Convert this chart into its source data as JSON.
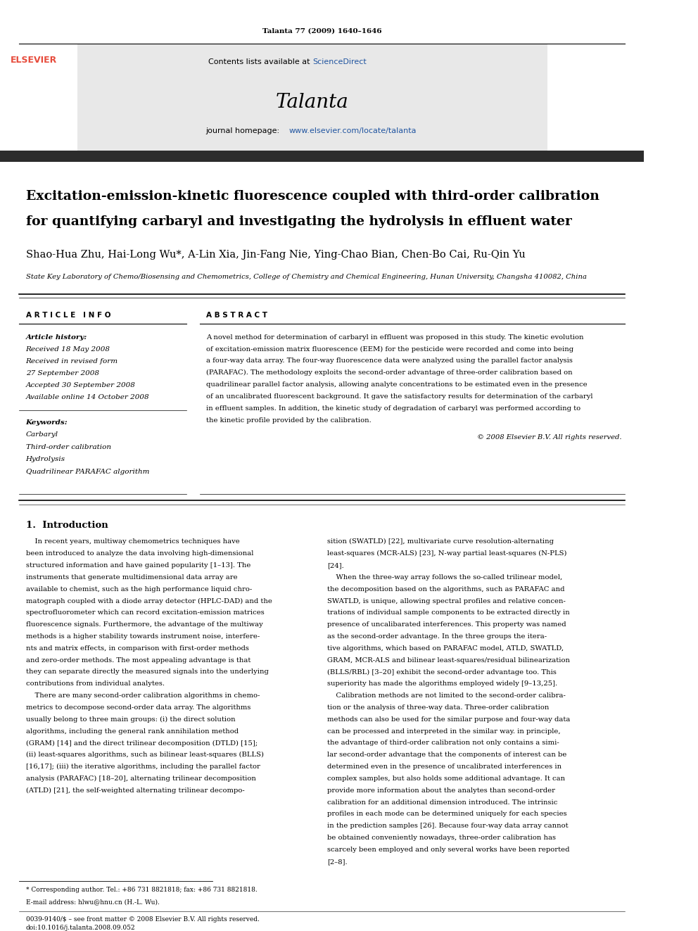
{
  "page_width": 9.92,
  "page_height": 13.23,
  "bg_color": "#ffffff",
  "header_journal_ref": "Talanta 77 (2009) 1640–1646",
  "journal_name": "Talanta",
  "contents_text": "Contents lists available at ScienceDirect",
  "sciencedirect_color": "#2155a0",
  "journal_homepage_url": "www.elsevier.com/locate/talanta",
  "elsevier_color": "#e74c3c",
  "header_bg": "#e8e8e8",
  "dark_bar_color": "#2c2c2c",
  "authors": "Shao-Hua Zhu, Hai-Long Wu*, A-Lin Xia, Jin-Fang Nie, Ying-Chao Bian, Chen-Bo Cai, Ru-Qin Yu",
  "affiliation": "State Key Laboratory of Chemo/Biosensing and Chemometrics, College of Chemistry and Chemical Engineering, Hunan University, Changsha 410082, China",
  "keywords": [
    "Carbaryl",
    "Third-order calibration",
    "Hydrolysis",
    "Quadrilinear PARAFAC algorithm"
  ],
  "copyright": "© 2008 Elsevier B.V. All rights reserved.",
  "left_col_lines": [
    "    In recent years, multiway chemometrics techniques have",
    "been introduced to analyze the data involving high-dimensional",
    "structured information and have gained popularity [1–13]. The",
    "instruments that generate multidimensional data array are",
    "available to chemist, such as the high performance liquid chro-",
    "matograph coupled with a diode array detector (HPLC-DAD) and the",
    "spectrofluorometer which can record excitation-emission matrices",
    "fluorescence signals. Furthermore, the advantage of the multiway",
    "methods is a higher stability towards instrument noise, interfere-",
    "nts and matrix effects, in comparison with first-order methods",
    "and zero-order methods. The most appealing advantage is that",
    "they can separate directly the measured signals into the underlying",
    "contributions from individual analytes.",
    "    There are many second-order calibration algorithms in chemo-",
    "metrics to decompose second-order data array. The algorithms",
    "usually belong to three main groups: (i) the direct solution",
    "algorithms, including the general rank annihilation method",
    "(GRAM) [14] and the direct trilinear decomposition (DTLD) [15];",
    "(ii) least-squares algorithms, such as bilinear least-squares (BLLS)",
    "[16,17]; (iii) the iterative algorithms, including the parallel factor",
    "analysis (PARAFAC) [18–20], alternating trilinear decomposition",
    "(ATLD) [21], the self-weighted alternating trilinear decompo-"
  ],
  "right_col_lines": [
    "sition (SWATLD) [22], multivariate curve resolution-alternating",
    "least-squares (MCR-ALS) [23], N-way partial least-squares (N-PLS)",
    "[24].",
    "    When the three-way array follows the so-called trilinear model,",
    "the decomposition based on the algorithms, such as PARAFAC and",
    "SWATLD, is unique, allowing spectral profiles and relative concen-",
    "trations of individual sample components to be extracted directly in",
    "presence of uncalibarated interferences. This property was named",
    "as the second-order advantage. In the three groups the itera-",
    "tive algorithms, which based on PARAFAC model, ATLD, SWATLD,",
    "GRAM, MCR-ALS and bilinear least-squares/residual bilinearization",
    "(BLLS/RBL) [3–20] exhibit the second-order advantage too. This",
    "superiority has made the algorithms employed widely [9–13,25].",
    "    Calibration methods are not limited to the second-order calibra-",
    "tion or the analysis of three-way data. Three-order calibration",
    "methods can also be used for the similar purpose and four-way data",
    "can be processed and interpreted in the similar way. in principle,",
    "the advantage of third-order calibration not only contains a simi-",
    "lar second-order advantage that the components of interest can be",
    "determined even in the presence of uncalibrated interferences in",
    "complex samples, but also holds some additional advantage. It can",
    "provide more information about the analytes than second-order",
    "calibration for an additional dimension introduced. The intrinsic",
    "profiles in each mode can be determined uniquely for each species",
    "in the prediction samples [26]. Because four-way data array cannot",
    "be obtained conveniently nowadays, three-order calibration has",
    "scarcely been employed and only several works have been reported",
    "[2–8]."
  ],
  "abstract_lines": [
    "A novel method for determination of carbaryl in effluent was proposed in this study. The kinetic evolution",
    "of excitation-emission matrix fluorescence (EEM) for the pesticide were recorded and come into being",
    "a four-way data array. The four-way fluorescence data were analyzed using the parallel factor analysis",
    "(PARAFAC). The methodology exploits the second-order advantage of three-order calibration based on",
    "quadrilinear parallel factor analysis, allowing analyte concentrations to be estimated even in the presence",
    "of an uncalibrated fluorescent background. It gave the satisfactory results for determination of the carbaryl",
    "in effluent samples. In addition, the kinetic study of degradation of carbaryl was performed according to",
    "the kinetic profile provided by the calibration."
  ]
}
